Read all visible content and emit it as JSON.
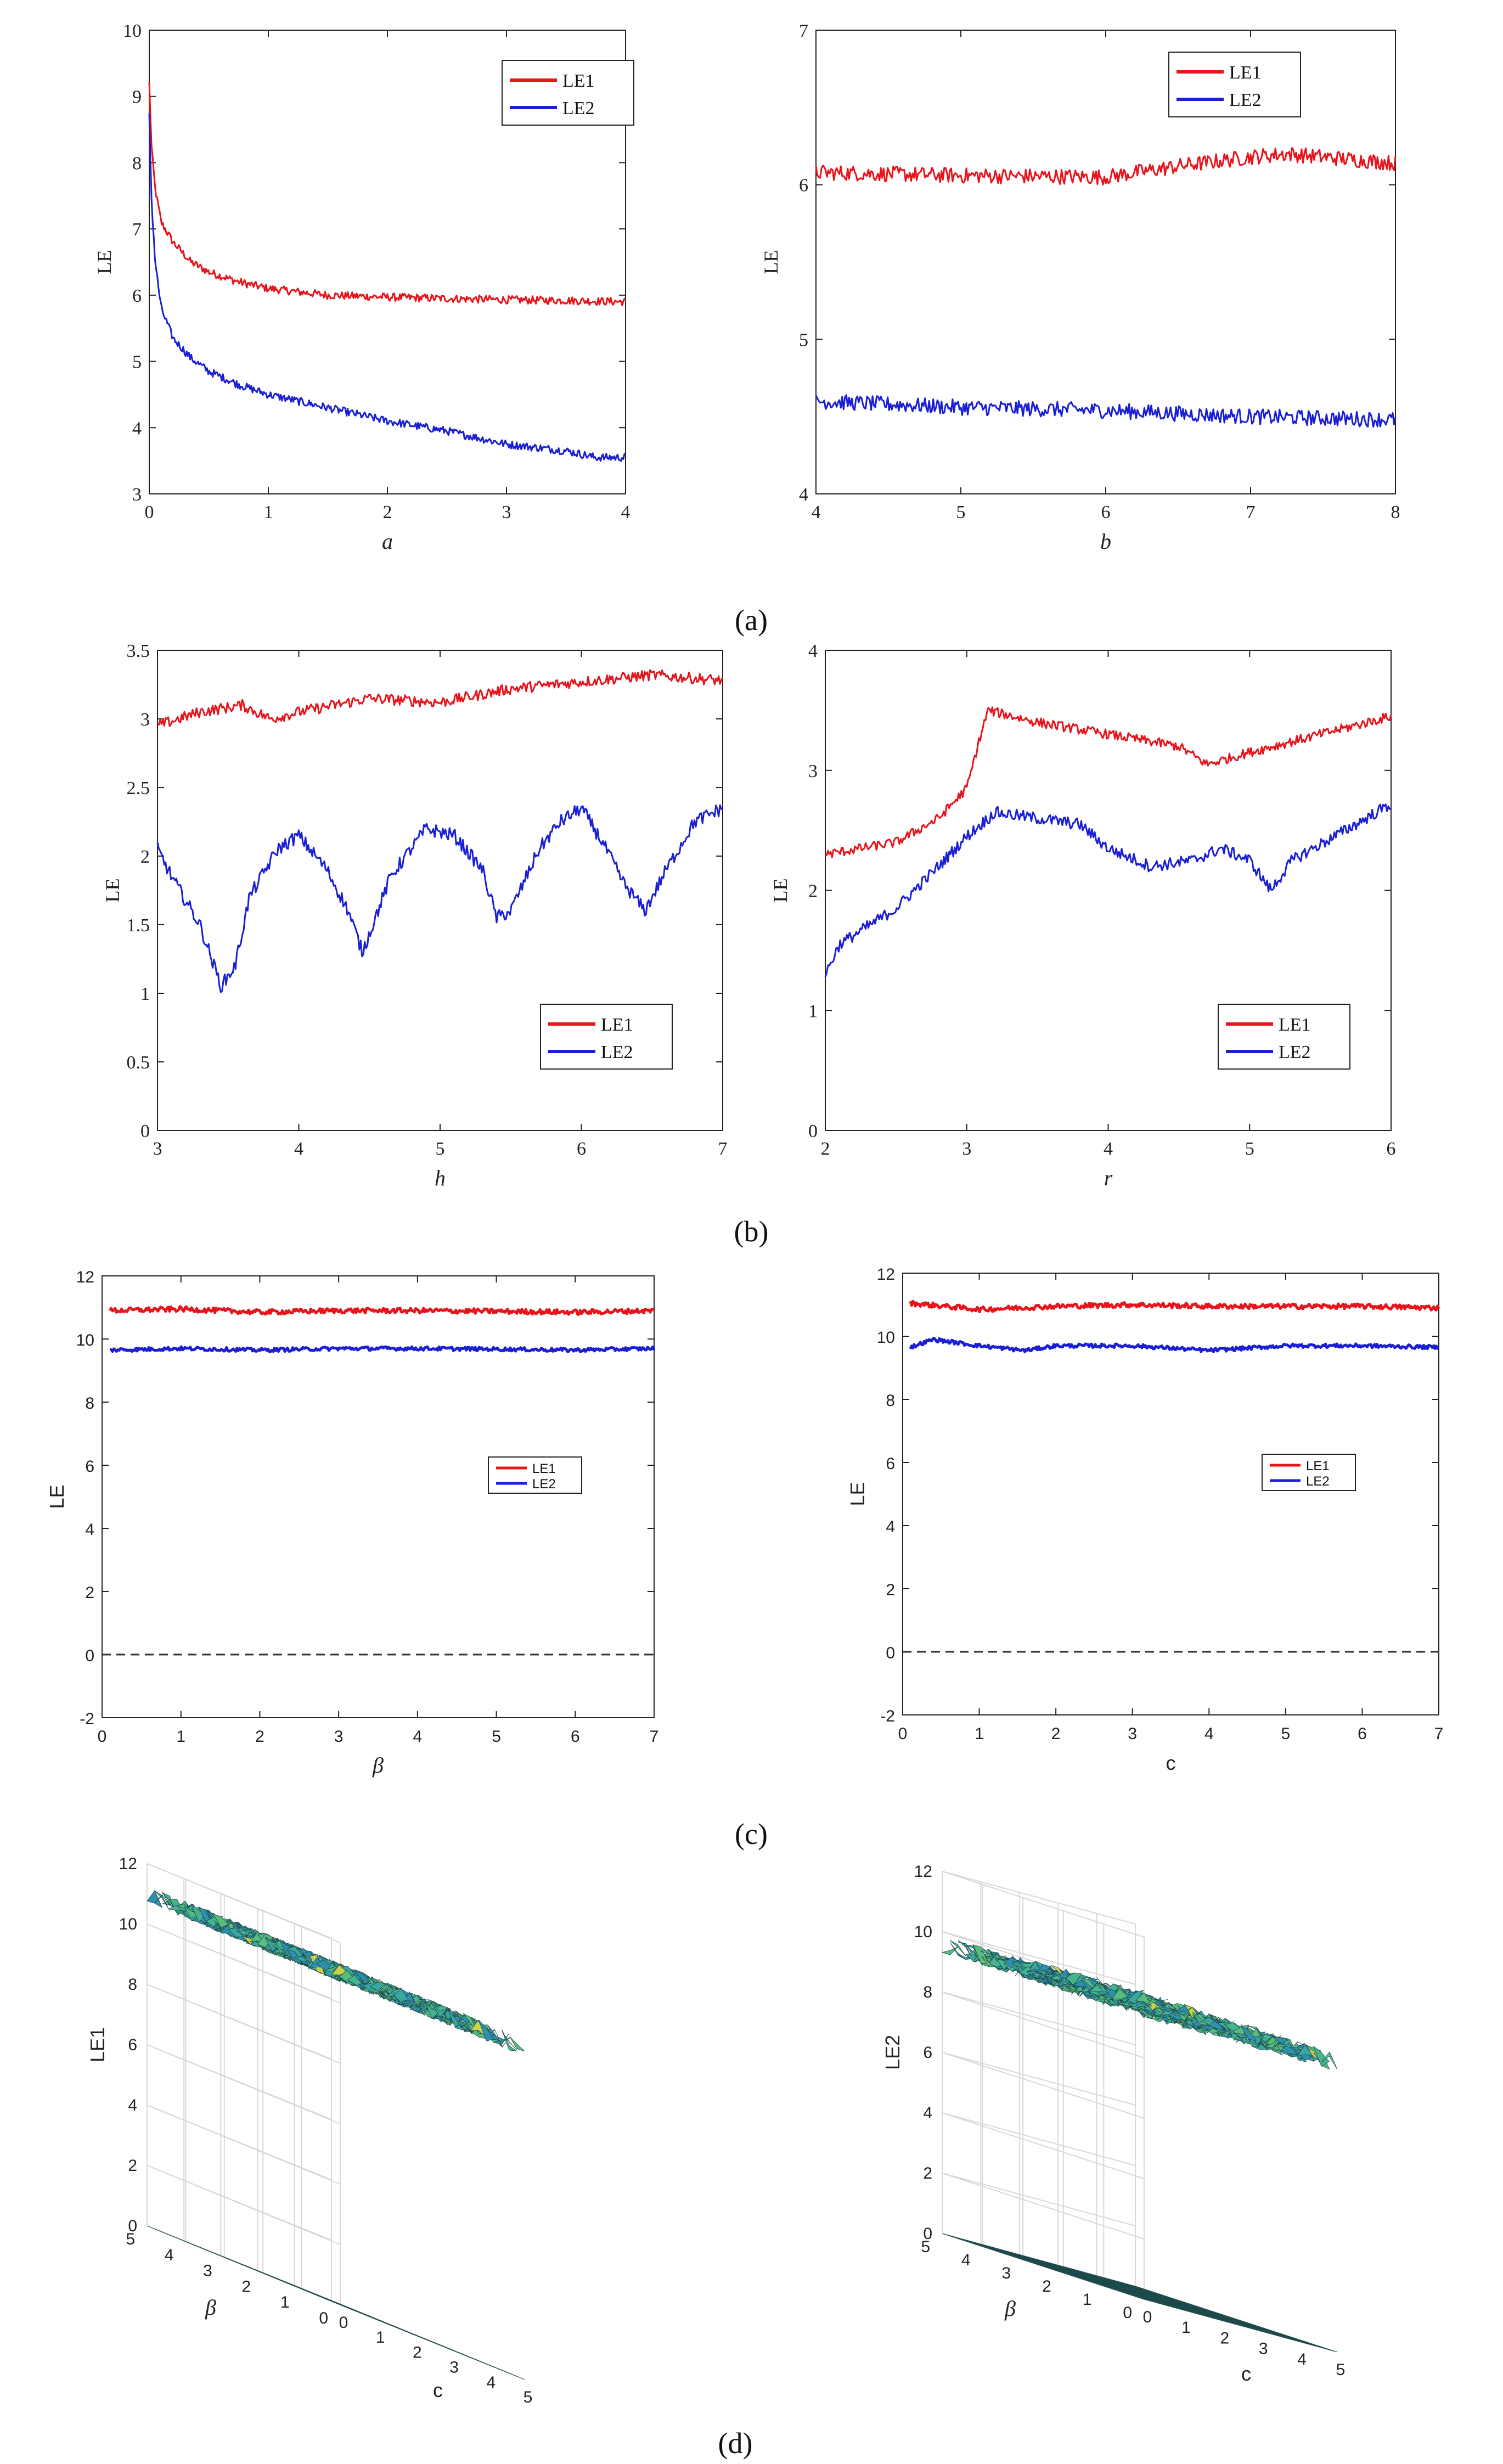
{
  "colors": {
    "le1": "#e8141b",
    "le2": "#1a1fd6",
    "surface_top": "#3fb59a",
    "surface_flat": "#2aa7a0",
    "grid": "#d8d8d8"
  },
  "panel_labels": {
    "a": "(a)",
    "b": "(b)",
    "c": "(c)",
    "d": "(d)"
  },
  "chart_data": [
    {
      "id": "a_left",
      "type": "line",
      "xlabel": "a",
      "ylabel": "LE",
      "xlim": [
        0,
        4
      ],
      "ylim": [
        3,
        10
      ],
      "xticks": [
        0,
        1,
        2,
        3,
        4
      ],
      "yticks": [
        3,
        4,
        5,
        6,
        7,
        8,
        9,
        10
      ],
      "legend": [
        "LE1",
        "LE2"
      ],
      "legend_position": "top-right",
      "series": [
        {
          "name": "LE1",
          "x": [
            0,
            0.02,
            0.05,
            0.1,
            0.2,
            0.35,
            0.5,
            0.75,
            1.0,
            1.5,
            2.0,
            2.5,
            3.0,
            3.5,
            4.0
          ],
          "values": [
            9.2,
            8.2,
            7.6,
            7.1,
            6.8,
            6.5,
            6.35,
            6.2,
            6.1,
            6.0,
            5.97,
            5.95,
            5.93,
            5.92,
            5.9
          ],
          "noise": 0.06
        },
        {
          "name": "LE2",
          "x": [
            0,
            0.02,
            0.05,
            0.1,
            0.2,
            0.35,
            0.5,
            0.75,
            1.0,
            1.5,
            2.0,
            2.5,
            3.0,
            3.5,
            3.75,
            4.0
          ],
          "values": [
            8.7,
            7.4,
            6.5,
            5.8,
            5.35,
            5.05,
            4.85,
            4.65,
            4.5,
            4.3,
            4.1,
            3.95,
            3.75,
            3.65,
            3.55,
            3.55
          ],
          "noise": 0.06
        }
      ]
    },
    {
      "id": "a_right",
      "type": "line",
      "xlabel": "b",
      "ylabel": "LE",
      "xlim": [
        4,
        8
      ],
      "ylim": [
        4,
        7
      ],
      "xticks": [
        4,
        5,
        6,
        7,
        8
      ],
      "yticks": [
        4,
        5,
        6,
        7
      ],
      "legend": [
        "LE1",
        "LE2"
      ],
      "legend_position": "top-right",
      "series": [
        {
          "name": "LE1",
          "x": [
            4,
            5,
            6,
            6.5,
            7,
            7.25,
            8
          ],
          "values": [
            6.08,
            6.06,
            6.05,
            6.12,
            6.18,
            6.2,
            6.14
          ],
          "noise": 0.05
        },
        {
          "name": "LE2",
          "x": [
            4,
            5,
            6,
            7,
            8
          ],
          "values": [
            4.6,
            4.56,
            4.54,
            4.5,
            4.48
          ],
          "noise": 0.05
        }
      ]
    },
    {
      "id": "b_left",
      "type": "line",
      "xlabel": "h",
      "ylabel": "LE",
      "xlim": [
        3,
        7
      ],
      "ylim": [
        0,
        3.5
      ],
      "xticks": [
        3,
        4,
        5,
        6,
        7
      ],
      "yticks": [
        0,
        0.5,
        1,
        1.5,
        2,
        2.5,
        3,
        3.5
      ],
      "legend": [
        "LE1",
        "LE2"
      ],
      "legend_position": "bottom-right",
      "series": [
        {
          "name": "LE1",
          "x": [
            3,
            3.3,
            3.6,
            3.8,
            4.0,
            4.5,
            5.0,
            5.5,
            6.0,
            6.5,
            7.0
          ],
          "values": [
            2.95,
            3.05,
            3.1,
            3.0,
            3.05,
            3.15,
            3.12,
            3.22,
            3.27,
            3.32,
            3.28
          ],
          "noise": 0.04
        },
        {
          "name": "LE2",
          "x": [
            3.0,
            3.1,
            3.3,
            3.45,
            3.55,
            3.65,
            3.85,
            4.0,
            4.2,
            4.35,
            4.45,
            4.65,
            4.9,
            5.1,
            5.3,
            5.4,
            5.5,
            5.7,
            5.85,
            6.0,
            6.15,
            6.3,
            6.45,
            6.6,
            6.8,
            7.0
          ],
          "values": [
            2.05,
            1.85,
            1.5,
            1.05,
            1.2,
            1.7,
            2.05,
            2.15,
            1.9,
            1.6,
            1.3,
            1.85,
            2.2,
            2.15,
            1.9,
            1.55,
            1.6,
            2.05,
            2.25,
            2.35,
            2.1,
            1.8,
            1.6,
            1.9,
            2.25,
            2.35
          ],
          "noise": 0.05
        }
      ]
    },
    {
      "id": "b_right",
      "type": "line",
      "xlabel": "r",
      "ylabel": "LE",
      "xlim": [
        2,
        6
      ],
      "ylim": [
        0,
        4
      ],
      "xticks": [
        2,
        3,
        4,
        5,
        6
      ],
      "yticks": [
        0,
        1,
        2,
        3,
        4
      ],
      "legend": [
        "LE1",
        "LE2"
      ],
      "legend_position": "bottom-right",
      "series": [
        {
          "name": "LE1",
          "x": [
            2.0,
            2.5,
            2.8,
            3.0,
            3.1,
            3.15,
            3.5,
            4.0,
            4.5,
            4.7,
            5.0,
            5.5,
            6.0
          ],
          "values": [
            2.3,
            2.4,
            2.6,
            2.85,
            3.3,
            3.5,
            3.4,
            3.3,
            3.2,
            3.05,
            3.15,
            3.3,
            3.45
          ],
          "noise": 0.04
        },
        {
          "name": "LE2",
          "x": [
            2.0,
            2.1,
            2.5,
            2.8,
            3.0,
            3.2,
            3.5,
            3.8,
            4.0,
            4.3,
            4.6,
            4.8,
            5.0,
            5.15,
            5.3,
            5.6,
            6.0
          ],
          "values": [
            1.3,
            1.55,
            1.85,
            2.2,
            2.45,
            2.65,
            2.6,
            2.55,
            2.35,
            2.2,
            2.25,
            2.35,
            2.25,
            2.0,
            2.25,
            2.45,
            2.72
          ],
          "noise": 0.05
        }
      ]
    },
    {
      "id": "c_left",
      "type": "line",
      "xlabel": "β",
      "ylabel": "LE",
      "xlim": [
        0,
        7
      ],
      "ylim": [
        -2,
        12
      ],
      "xticks": [
        0,
        1,
        2,
        3,
        4,
        5,
        6,
        7
      ],
      "yticks": [
        -2,
        0,
        2,
        4,
        6,
        8,
        10,
        12
      ],
      "legend": [
        "LE1",
        "LE2"
      ],
      "legend_position": "right",
      "reference_line": 0,
      "series": [
        {
          "name": "LE1",
          "x": [
            0.1,
            1,
            2,
            3,
            4,
            5,
            6,
            7
          ],
          "values": [
            10.9,
            10.95,
            10.85,
            10.9,
            10.9,
            10.88,
            10.85,
            10.9
          ],
          "noise": 0.08
        },
        {
          "name": "LE2",
          "x": [
            0.1,
            1,
            2,
            3,
            4,
            5,
            6,
            7
          ],
          "values": [
            9.65,
            9.7,
            9.65,
            9.7,
            9.7,
            9.68,
            9.65,
            9.7
          ],
          "noise": 0.06
        }
      ]
    },
    {
      "id": "c_right",
      "type": "line",
      "xlabel": "c",
      "ylabel": "LE",
      "xlim": [
        0,
        7
      ],
      "ylim": [
        -2,
        12
      ],
      "xticks": [
        0,
        1,
        2,
        3,
        4,
        5,
        6,
        7
      ],
      "yticks": [
        -2,
        0,
        2,
        4,
        6,
        8,
        10,
        12
      ],
      "legend": [
        "LE1",
        "LE2"
      ],
      "legend_position": "right",
      "reference_line": 0,
      "series": [
        {
          "name": "LE1",
          "x": [
            0.1,
            1,
            2,
            3,
            4,
            5,
            6,
            7
          ],
          "values": [
            11.05,
            10.85,
            10.95,
            11.0,
            10.95,
            10.95,
            10.95,
            10.9
          ],
          "noise": 0.08
        },
        {
          "name": "LE2",
          "x": [
            0.1,
            0.4,
            1,
            1.6,
            2,
            3,
            4,
            5,
            6,
            7
          ],
          "values": [
            9.65,
            9.9,
            9.7,
            9.55,
            9.7,
            9.7,
            9.55,
            9.7,
            9.7,
            9.65
          ],
          "noise": 0.06
        }
      ]
    },
    {
      "id": "d_left",
      "type": "surface3d",
      "xlabel": "c",
      "ylabel": "β",
      "zlabel": "LE1",
      "xlim": [
        0,
        5
      ],
      "ylim": [
        0,
        5
      ],
      "zlim": [
        0,
        12
      ],
      "xticks": [
        0,
        1,
        2,
        3,
        4,
        5
      ],
      "yticks": [
        0,
        1,
        2,
        3,
        4,
        5
      ],
      "zticks": [
        0,
        2,
        4,
        6,
        8,
        10,
        12
      ],
      "surface_level": 11,
      "floor_level": 0
    },
    {
      "id": "d_right",
      "type": "surface3d",
      "xlabel": "c",
      "ylabel": "β",
      "zlabel": "LE2",
      "xlim": [
        0,
        5
      ],
      "ylim": [
        0,
        5
      ],
      "zlim": [
        0,
        12
      ],
      "xticks": [
        0,
        1,
        2,
        3,
        4,
        5
      ],
      "yticks": [
        0,
        1,
        2,
        3,
        4,
        5
      ],
      "zticks": [
        0,
        2,
        4,
        6,
        8,
        10,
        12
      ],
      "surface_level": 9.6,
      "floor_level": 0
    }
  ]
}
